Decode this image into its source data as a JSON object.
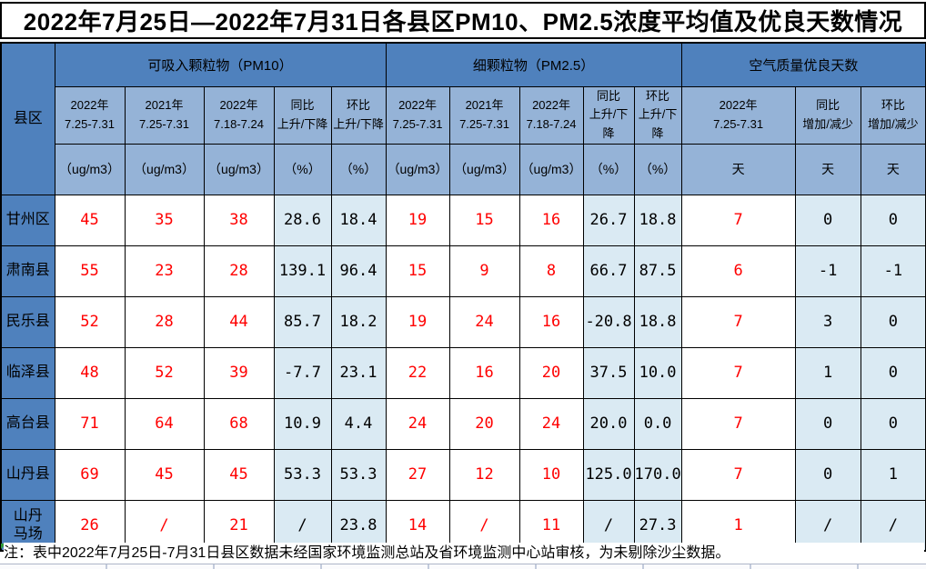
{
  "title": "2022年7月25日—2022年7月31日各县区PM10、PM2.5浓度平均值及优良天数情况",
  "note": "注：表中2022年7月25日-7月31日县区数据未经国家环境监测总站及省环境监测中心站审核，为未剔除沙尘数据。",
  "colors": {
    "group_header_bg": "#4f81bd",
    "subheader_bg": "#95b3d7",
    "row_header_bg": "#4f81bd",
    "highlight_cell_bg": "#daeaf3",
    "value_red": "#ff0000",
    "edge_marker_teal": "#3fae96"
  },
  "table": {
    "row_header_label": "县区",
    "groups": [
      {
        "label": "可吸入颗粒物（PM10）",
        "columns": [
          {
            "period": "2022年\n7.25-7.31",
            "unit": "（ug/m3）"
          },
          {
            "period": "2021年\n7.25-7.31",
            "unit": "（ug/m3）"
          },
          {
            "period": "2022年\n7.18-7.24",
            "unit": "（ug/m3）"
          },
          {
            "period": "同比\n上升/下降",
            "unit": "（%）"
          },
          {
            "period": "环比\n上升/下降",
            "unit": "（%）"
          }
        ]
      },
      {
        "label": "细颗粒物（PM2.5）",
        "columns": [
          {
            "period": "2022年\n7.25-7.31",
            "unit": "（ug/m3）"
          },
          {
            "period": "2021年\n7.25-7.31",
            "unit": "（ug/m3）"
          },
          {
            "period": "2022年\n7.18-7.24",
            "unit": "（ug/m3）"
          },
          {
            "period": "同比\n上升/下降",
            "unit": "（%）"
          },
          {
            "period": "环比\n上升/下降",
            "unit": "（%）"
          }
        ]
      },
      {
        "label": "空气质量优良天数",
        "columns": [
          {
            "period": "2022年\n7.25-7.31",
            "unit": "天"
          },
          {
            "period": "同比\n增加/减少",
            "unit": "天"
          },
          {
            "period": "环比\n增加/减少",
            "unit": "天"
          }
        ]
      }
    ],
    "rows": [
      {
        "name": "甘州区",
        "values": [
          "45",
          "35",
          "38",
          "28.6",
          "18.4",
          "19",
          "15",
          "16",
          "26.7",
          "18.8",
          "7",
          "0",
          "0"
        ]
      },
      {
        "name": "肃南县",
        "values": [
          "55",
          "23",
          "28",
          "139.1",
          "96.4",
          "15",
          "9",
          "8",
          "66.7",
          "87.5",
          "6",
          "-1",
          "-1"
        ]
      },
      {
        "name": "民乐县",
        "values": [
          "52",
          "28",
          "44",
          "85.7",
          "18.2",
          "19",
          "24",
          "16",
          "-20.8",
          "18.8",
          "7",
          "3",
          "0"
        ]
      },
      {
        "name": "临泽县",
        "values": [
          "48",
          "52",
          "39",
          "-7.7",
          "23.1",
          "22",
          "16",
          "20",
          "37.5",
          "10.0",
          "7",
          "1",
          "0"
        ]
      },
      {
        "name": "高台县",
        "values": [
          "71",
          "64",
          "68",
          "10.9",
          "4.4",
          "24",
          "20",
          "24",
          "20.0",
          "0.0",
          "7",
          "0",
          "0"
        ]
      },
      {
        "name": "山丹县",
        "values": [
          "69",
          "45",
          "45",
          "53.3",
          "53.3",
          "27",
          "12",
          "10",
          "125.0",
          "170.0",
          "7",
          "0",
          "1"
        ]
      },
      {
        "name": "山丹\n马场",
        "values": [
          "26",
          "/",
          "21",
          "/",
          "23.8",
          "14",
          "/",
          "11",
          "/",
          "27.3",
          "1",
          "/",
          "/"
        ]
      }
    ]
  }
}
